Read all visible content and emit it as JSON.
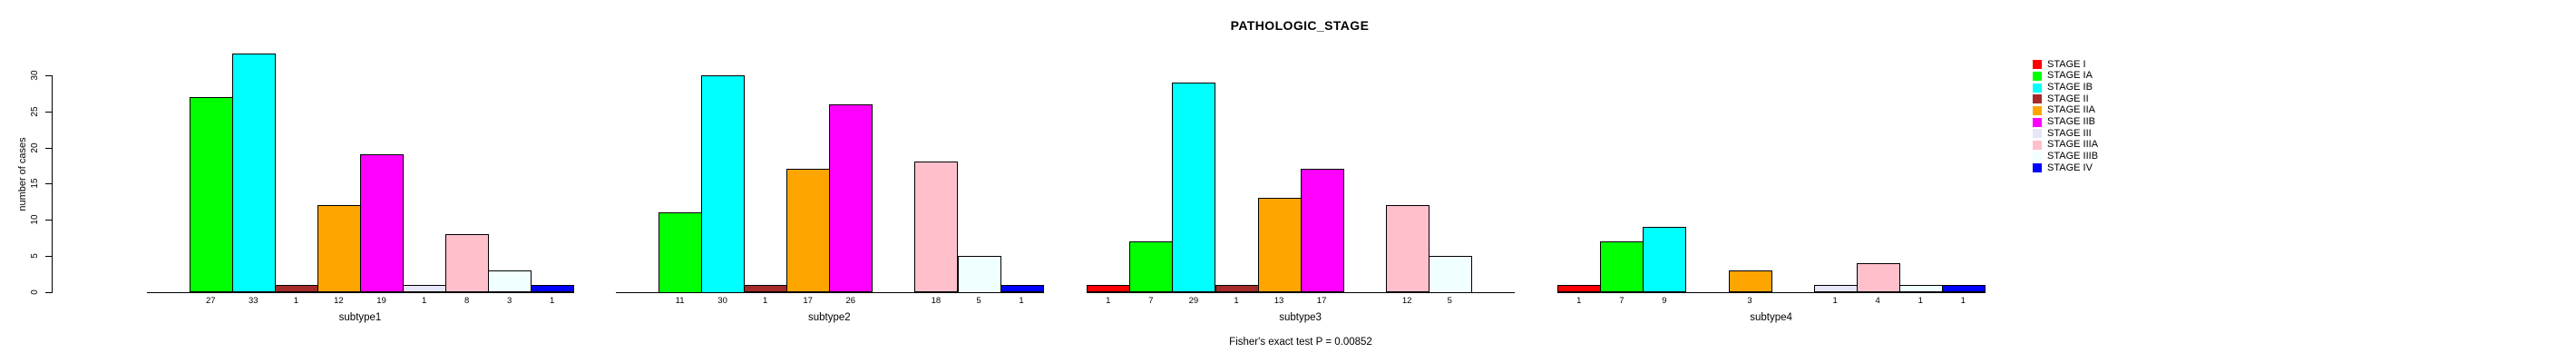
{
  "chart_data": {
    "type": "bar",
    "title": "PATHOLOGIC_STAGE",
    "ylabel": "number of cases",
    "xlabel": "",
    "ylim": [
      0,
      33
    ],
    "yticks": [
      0,
      5,
      10,
      15,
      20,
      25,
      30
    ],
    "grid": false,
    "legend_position": "right",
    "annotation": "Fisher's exact test P = 0.00852",
    "categories": [
      "subtype1",
      "subtype2",
      "subtype3",
      "subtype4"
    ],
    "series": [
      {
        "name": "STAGE I",
        "color": "#FF0000",
        "values": [
          0,
          0,
          1,
          1
        ]
      },
      {
        "name": "STAGE IA",
        "color": "#00FF00",
        "values": [
          27,
          11,
          7,
          7
        ]
      },
      {
        "name": "STAGE IB",
        "color": "#00FFFF",
        "values": [
          33,
          30,
          29,
          9
        ]
      },
      {
        "name": "STAGE II",
        "color": "#A52A2A",
        "values": [
          1,
          1,
          1,
          0
        ]
      },
      {
        "name": "STAGE IIA",
        "color": "#FFA500",
        "values": [
          12,
          17,
          13,
          3
        ]
      },
      {
        "name": "STAGE IIB",
        "color": "#FF00FF",
        "values": [
          19,
          26,
          17,
          0
        ]
      },
      {
        "name": "STAGE III",
        "color": "#E6E6FA",
        "values": [
          1,
          0,
          0,
          1
        ]
      },
      {
        "name": "STAGE IIIA",
        "color": "#FFC0CB",
        "values": [
          8,
          18,
          12,
          4
        ]
      },
      {
        "name": "STAGE IIIB",
        "color": "#F0FFFF",
        "values": [
          3,
          5,
          5,
          1
        ]
      },
      {
        "name": "STAGE IV",
        "color": "#0000FF",
        "values": [
          1,
          1,
          0,
          1
        ]
      }
    ]
  }
}
